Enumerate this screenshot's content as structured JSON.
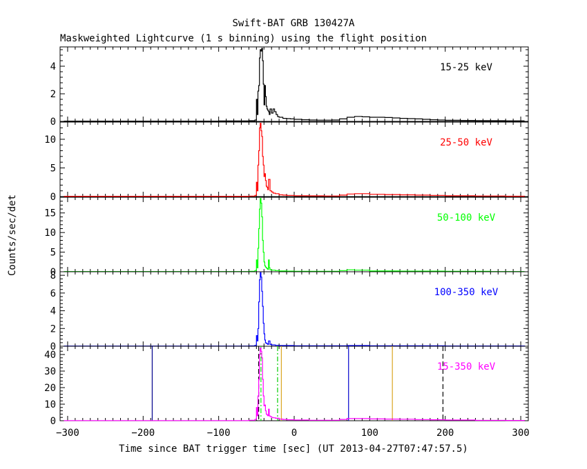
{
  "chart_data": {
    "type": "line",
    "title": "Swift-BAT GRB 130427A",
    "subtitle": "Maskweighted Lightcurve (1 s binning) using the flight position",
    "xlabel": "Time since BAT trigger time [sec] (UT 2013-04-27T07:47:57.5)",
    "ylabel": "Counts/sec/det",
    "xlim": [
      -310,
      310
    ],
    "xticks": [
      -300,
      -200,
      -100,
      0,
      100,
      200,
      300
    ],
    "panels": [
      {
        "label": "15-25 keV",
        "color": "#000000",
        "ylim": [
          0,
          5.4
        ],
        "yticks": [
          0,
          2,
          4
        ],
        "x": [
          -305,
          -200,
          -100,
          -60,
          -52,
          -50,
          -49,
          -48,
          -47,
          -46,
          -45,
          -44,
          -43,
          -42,
          -41,
          -40,
          -39,
          -38,
          -37,
          -36,
          -35,
          -34,
          -33,
          -32,
          -30,
          -28,
          -26,
          -24,
          -22,
          -20,
          -15,
          -10,
          -5,
          0,
          10,
          20,
          30,
          40,
          50,
          60,
          70,
          80,
          90,
          100,
          110,
          120,
          130,
          140,
          150,
          160,
          170,
          180,
          190,
          200,
          220,
          240,
          260,
          280,
          305
        ],
        "y": [
          0.02,
          0.02,
          0.03,
          0.05,
          0.1,
          1.6,
          0.5,
          2.2,
          2.6,
          4.6,
          5.2,
          5.1,
          5.3,
          4.4,
          2.7,
          1.2,
          2.6,
          1.8,
          1.1,
          0.9,
          0.8,
          0.7,
          0.5,
          0.9,
          0.6,
          0.9,
          0.7,
          0.5,
          0.35,
          0.3,
          0.22,
          0.2,
          0.18,
          0.15,
          0.12,
          0.1,
          0.09,
          0.09,
          0.1,
          0.18,
          0.3,
          0.36,
          0.33,
          0.3,
          0.3,
          0.28,
          0.25,
          0.22,
          0.2,
          0.18,
          0.15,
          0.12,
          0.1,
          0.08,
          0.07,
          0.06,
          0.05,
          0.04,
          0.04
        ]
      },
      {
        "label": "25-50 keV",
        "color": "#ff0000",
        "ylim": [
          0,
          13
        ],
        "yticks": [
          0,
          5,
          10
        ],
        "x": [
          -305,
          -200,
          -100,
          -60,
          -52,
          -50,
          -49,
          -48,
          -47,
          -46,
          -45,
          -44,
          -43,
          -42,
          -41,
          -40,
          -39,
          -38,
          -37,
          -36,
          -35,
          -34,
          -32,
          -30,
          -28,
          -25,
          -20,
          -15,
          -10,
          0,
          20,
          40,
          60,
          70,
          80,
          100,
          120,
          140,
          160,
          180,
          200,
          240,
          280,
          305
        ],
        "y": [
          0.05,
          0.05,
          0.05,
          0.08,
          0.2,
          2.5,
          1.0,
          5.5,
          8.0,
          12.0,
          12.8,
          11.5,
          10.5,
          7.0,
          5.5,
          3.5,
          4.0,
          2.8,
          1.8,
          1.6,
          1.2,
          3.0,
          1.0,
          0.8,
          0.6,
          0.5,
          0.3,
          0.25,
          0.2,
          0.15,
          0.12,
          0.1,
          0.25,
          0.45,
          0.5,
          0.4,
          0.35,
          0.3,
          0.25,
          0.2,
          0.15,
          0.1,
          0.06,
          0.05
        ]
      },
      {
        "label": "50-100 keV",
        "color": "#00ff00",
        "ylim": [
          0,
          19
        ],
        "yticks": [
          0,
          5,
          10,
          15
        ],
        "x": [
          -305,
          -200,
          -100,
          -60,
          -52,
          -50,
          -49,
          -48,
          -47,
          -46,
          -45,
          -44,
          -43,
          -42,
          -41,
          -40,
          -39,
          -38,
          -37,
          -36,
          -35,
          -34,
          -33,
          -32,
          -30,
          -25,
          -20,
          -10,
          0,
          40,
          60,
          70,
          80,
          100,
          140,
          200,
          260,
          305
        ],
        "y": [
          0.05,
          0.05,
          0.05,
          0.1,
          0.3,
          3.0,
          1.0,
          6.0,
          11.0,
          16.0,
          18.7,
          17.5,
          14.0,
          8.0,
          5.0,
          2.5,
          1.5,
          1.2,
          1.0,
          0.8,
          0.6,
          3.0,
          1.0,
          0.5,
          0.4,
          0.3,
          0.2,
          0.15,
          0.1,
          0.1,
          0.3,
          0.5,
          0.4,
          0.2,
          0.15,
          0.1,
          0.06,
          0.05
        ]
      },
      {
        "label": "100-350 keV",
        "color": "#0000ff",
        "ylim": [
          0,
          8.4
        ],
        "yticks": [
          0,
          2,
          4,
          6,
          8
        ],
        "x": [
          -305,
          -200,
          -100,
          -60,
          -52,
          -50,
          -49,
          -48,
          -47,
          -46,
          -45,
          -44,
          -43,
          -42,
          -41,
          -40,
          -39,
          -38,
          -37,
          -36,
          -35,
          -34,
          -32,
          -30,
          -25,
          -20,
          0,
          40,
          70,
          100,
          200,
          305
        ],
        "y": [
          0.02,
          0.02,
          0.02,
          0.04,
          0.1,
          1.2,
          0.6,
          2.0,
          5.0,
          7.5,
          8.3,
          7.8,
          6.2,
          4.5,
          2.6,
          1.4,
          0.7,
          0.4,
          0.3,
          0.3,
          0.2,
          0.6,
          0.2,
          0.15,
          0.1,
          0.08,
          0.05,
          0.05,
          0.08,
          0.05,
          0.03,
          0.02
        ]
      },
      {
        "label": "15-350 keV",
        "color": "#ff00ff",
        "ylim": [
          0,
          45
        ],
        "yticks": [
          0,
          10,
          20,
          30,
          40
        ],
        "x": [
          -305,
          -200,
          -100,
          -60,
          -52,
          -50,
          -49,
          -48,
          -47,
          -46,
          -45,
          -44,
          -43,
          -42,
          -41,
          -40,
          -39,
          -38,
          -37,
          -36,
          -35,
          -34,
          -33,
          -32,
          -30,
          -28,
          -25,
          -20,
          -15,
          -10,
          0,
          20,
          40,
          60,
          70,
          80,
          100,
          120,
          140,
          160,
          180,
          200,
          240,
          280,
          305
        ],
        "y": [
          0.1,
          0.1,
          0.1,
          0.3,
          0.8,
          8.0,
          3.0,
          15.0,
          25.0,
          40.0,
          44.0,
          42.0,
          38.0,
          25.0,
          15.0,
          9.0,
          9.5,
          6.0,
          4.0,
          3.5,
          3.0,
          7.0,
          3.0,
          2.5,
          2.0,
          1.8,
          1.5,
          1.0,
          0.8,
          0.6,
          0.4,
          0.3,
          0.3,
          0.8,
          1.3,
          1.3,
          1.1,
          1.0,
          0.9,
          0.7,
          0.6,
          0.4,
          0.2,
          0.15,
          0.1
        ]
      }
    ],
    "markers": [
      {
        "x": -188,
        "color": "#00008b",
        "style": "solid"
      },
      {
        "x": -47,
        "color": "#000000",
        "style": "dashed"
      },
      {
        "x": -44,
        "color": "#00ff00",
        "style": "dashdot"
      },
      {
        "x": -22,
        "color": "#00cc00",
        "style": "dashdot"
      },
      {
        "x": -17,
        "color": "#daa520",
        "style": "solid"
      },
      {
        "x": 72,
        "color": "#0000cd",
        "style": "solid"
      },
      {
        "x": 130,
        "color": "#daa520",
        "style": "solid"
      },
      {
        "x": 197,
        "color": "#000000",
        "style": "dashed"
      }
    ]
  }
}
